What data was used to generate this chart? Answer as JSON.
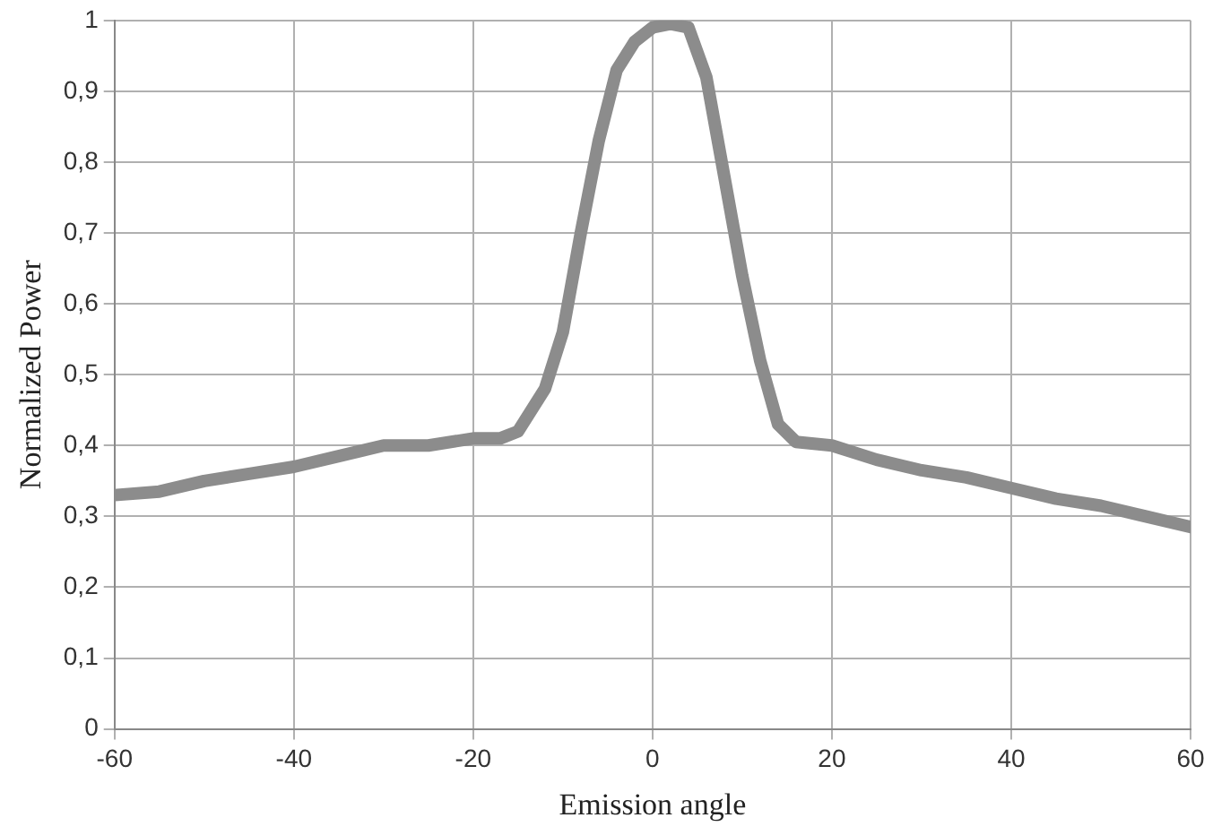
{
  "chart_data": {
    "type": "line",
    "xlabel": "Emission angle",
    "ylabel": "Normalized Power",
    "x": [
      -60,
      -55,
      -50,
      -45,
      -40,
      -35,
      -30,
      -25,
      -20,
      -17,
      -15,
      -12,
      -10,
      -8,
      -6,
      -4,
      -2,
      0,
      2,
      4,
      6,
      8,
      10,
      12,
      14,
      16,
      20,
      25,
      30,
      35,
      40,
      45,
      50,
      55,
      60
    ],
    "series": [
      {
        "color": "#8c8c8c",
        "values": [
          0.33,
          0.335,
          0.35,
          0.36,
          0.37,
          0.385,
          0.4,
          0.4,
          0.41,
          0.41,
          0.42,
          0.48,
          0.56,
          0.7,
          0.83,
          0.93,
          0.97,
          0.99,
          0.995,
          0.99,
          0.92,
          0.78,
          0.64,
          0.52,
          0.43,
          0.405,
          0.4,
          0.38,
          0.365,
          0.355,
          0.34,
          0.325,
          0.315,
          0.3,
          0.285
        ]
      }
    ],
    "xlim": [
      -60,
      60
    ],
    "xticks": [
      -60,
      -40,
      -20,
      0,
      20,
      40,
      60
    ],
    "ylim": [
      0,
      1
    ],
    "yticks": [
      0,
      {
        "value": 0.1,
        "label": "0,1"
      },
      {
        "value": 0.2,
        "label": "0,2"
      },
      {
        "value": 0.3,
        "label": "0,3"
      },
      {
        "value": 0.4,
        "label": "0,4"
      },
      {
        "value": 0.5,
        "label": "0,5"
      },
      {
        "value": 0.6,
        "label": "0,6"
      },
      {
        "value": 0.7,
        "label": "0,7"
      },
      {
        "value": 0.8,
        "label": "0,8"
      },
      {
        "value": 0.9,
        "label": "0,9"
      },
      1
    ],
    "grid": true,
    "legend": false,
    "marker": "none",
    "line_style": "solid"
  }
}
